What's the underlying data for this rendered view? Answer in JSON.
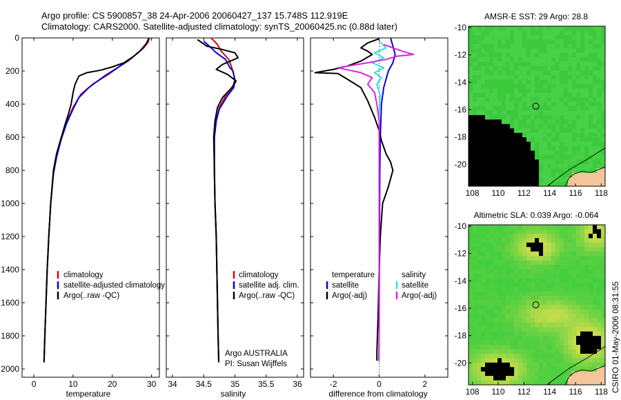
{
  "header": {
    "title_line1": "Argo profile: CS 5900857_38 24-Apr-2006 20060427_137 15.748S 112.919E",
    "title_line2": "Climatology: CARS2000. Satellite-adjusted climatology: synTS_20060425.nc (0.88d later)"
  },
  "side_label": "CSIRO 01-May-2006 08:31:55",
  "chart_data": [
    {
      "type": "line",
      "id": "temperature",
      "xlabel": "temperature",
      "ylabel": "",
      "xlim": [
        -3,
        32
      ],
      "ylim": [
        2050,
        0
      ],
      "x_ticks": [
        0,
        10,
        20,
        30
      ],
      "y_ticks": [
        0,
        200,
        400,
        600,
        800,
        1000,
        1200,
        1400,
        1600,
        1800,
        2000
      ],
      "legend": [
        "climatology",
        "satellite-adjusted climatology",
        "Argo(..raw -QC)"
      ],
      "series": [
        {
          "name": "climatology",
          "color": "#e00000",
          "points": [
            [
              29.5,
              0
            ],
            [
              29,
              30
            ],
            [
              28,
              60
            ],
            [
              26,
              100
            ],
            [
              24,
              140
            ],
            [
              22,
              170
            ],
            [
              19,
              220
            ],
            [
              15,
              280
            ],
            [
              12,
              340
            ],
            [
              10,
              420
            ],
            [
              8.5,
              500
            ],
            [
              7,
              600
            ],
            [
              5.8,
              700
            ],
            [
              5,
              800
            ],
            [
              4.3,
              1000
            ],
            [
              3.8,
              1200
            ],
            [
              3.4,
              1400
            ],
            [
              3.1,
              1600
            ],
            [
              2.8,
              1800
            ],
            [
              2.6,
              1950
            ]
          ]
        },
        {
          "name": "satellite-adjusted climatology",
          "color": "#0000e0",
          "points": [
            [
              29.3,
              0
            ],
            [
              28.8,
              30
            ],
            [
              27.5,
              70
            ],
            [
              25,
              120
            ],
            [
              22,
              170
            ],
            [
              18,
              230
            ],
            [
              14,
              300
            ],
            [
              11.5,
              360
            ],
            [
              10,
              430
            ],
            [
              8.3,
              520
            ],
            [
              7,
              610
            ],
            [
              5.8,
              720
            ],
            [
              5,
              820
            ],
            [
              4.3,
              1000
            ],
            [
              3.8,
              1200
            ],
            [
              3.4,
              1400
            ],
            [
              3.1,
              1600
            ],
            [
              2.8,
              1800
            ],
            [
              2.6,
              1960
            ]
          ]
        },
        {
          "name": "Argo(..raw -QC)",
          "color": "#000000",
          "points": [
            [
              29.2,
              10
            ],
            [
              28.5,
              40
            ],
            [
              27,
              80
            ],
            [
              25.5,
              110
            ],
            [
              23,
              150
            ],
            [
              20,
              175
            ],
            [
              17,
              195
            ],
            [
              13.5,
              210
            ],
            [
              11.5,
              230
            ],
            [
              10.5,
              280
            ],
            [
              10,
              330
            ],
            [
              9.5,
              400
            ],
            [
              8.8,
              460
            ],
            [
              8,
              520
            ],
            [
              7,
              600
            ],
            [
              5.8,
              700
            ],
            [
              5,
              800
            ],
            [
              4.3,
              1000
            ],
            [
              3.8,
              1200
            ],
            [
              3.4,
              1400
            ],
            [
              3.1,
              1600
            ],
            [
              2.8,
              1800
            ],
            [
              2.6,
              1960
            ]
          ]
        }
      ]
    },
    {
      "type": "line",
      "id": "salinity",
      "xlabel": "salinity",
      "xlim": [
        33.9,
        36.1
      ],
      "ylim": [
        2050,
        0
      ],
      "x_ticks": [
        34,
        34.5,
        35,
        35.5,
        36
      ],
      "legend": [
        "climatology",
        "satellite adj. clim.",
        "Argo(..raw -QC)"
      ],
      "annotation": [
        "Argo AUSTRALIA",
        "PI: Susan Wijffels"
      ],
      "series": [
        {
          "name": "climatology",
          "color": "#e00000",
          "points": [
            [
              34.62,
              0
            ],
            [
              34.72,
              40
            ],
            [
              34.78,
              80
            ],
            [
              34.9,
              130
            ],
            [
              34.95,
              180
            ],
            [
              35.0,
              250
            ],
            [
              34.97,
              290
            ],
            [
              34.85,
              350
            ],
            [
              34.75,
              420
            ],
            [
              34.7,
              500
            ],
            [
              34.67,
              600
            ],
            [
              34.67,
              800
            ],
            [
              34.68,
              1000
            ],
            [
              34.7,
              1200
            ],
            [
              34.71,
              1400
            ],
            [
              34.72,
              1600
            ],
            [
              34.73,
              1800
            ],
            [
              34.74,
              1950
            ]
          ]
        },
        {
          "name": "satellite adj. clim.",
          "color": "#0000e0",
          "points": [
            [
              34.5,
              20
            ],
            [
              34.62,
              60
            ],
            [
              34.7,
              90
            ],
            [
              34.85,
              130
            ],
            [
              34.92,
              180
            ],
            [
              34.97,
              200
            ],
            [
              35.0,
              260
            ],
            [
              34.98,
              300
            ],
            [
              34.88,
              350
            ],
            [
              34.75,
              430
            ],
            [
              34.7,
              500
            ],
            [
              34.67,
              600
            ],
            [
              34.67,
              800
            ],
            [
              34.68,
              1000
            ],
            [
              34.7,
              1200
            ],
            [
              34.71,
              1400
            ],
            [
              34.72,
              1600
            ],
            [
              34.73,
              1800
            ],
            [
              34.74,
              1960
            ]
          ]
        },
        {
          "name": "Argo(..raw -QC)",
          "color": "#000000",
          "points": [
            [
              34.4,
              10
            ],
            [
              34.55,
              50
            ],
            [
              34.8,
              70
            ],
            [
              35.0,
              90
            ],
            [
              35.05,
              120
            ],
            [
              34.8,
              160
            ],
            [
              34.7,
              190
            ],
            [
              34.88,
              220
            ],
            [
              35.02,
              260
            ],
            [
              34.95,
              300
            ],
            [
              34.8,
              360
            ],
            [
              34.72,
              420
            ],
            [
              34.68,
              500
            ],
            [
              34.66,
              600
            ],
            [
              34.67,
              800
            ],
            [
              34.68,
              1000
            ],
            [
              34.7,
              1200
            ],
            [
              34.71,
              1400
            ],
            [
              34.72,
              1600
            ],
            [
              34.73,
              1800
            ],
            [
              34.74,
              1960
            ]
          ]
        }
      ]
    },
    {
      "type": "line",
      "id": "difference",
      "xlabel": "difference from climatology",
      "xlim": [
        -3,
        3
      ],
      "ylim": [
        2050,
        0
      ],
      "x_ticks": [
        -2,
        0,
        2
      ],
      "legend_temperature": {
        "heading": "temperature",
        "items": [
          "satellite",
          "Argo(-adj)"
        ]
      },
      "legend_salinity": {
        "heading": "salinity",
        "items": [
          "satellite",
          "Argo(-adj)"
        ]
      },
      "series": [
        {
          "name": "temperature satellite",
          "color": "#0000e0",
          "points": [
            [
              0.5,
              0
            ],
            [
              0.6,
              50
            ],
            [
              0.7,
              100
            ],
            [
              0.6,
              150
            ],
            [
              0.4,
              200
            ],
            [
              0.2,
              300
            ],
            [
              0.1,
              400
            ],
            [
              0.05,
              600
            ],
            [
              0.03,
              800
            ],
            [
              0.02,
              1000
            ],
            [
              0.01,
              1400
            ],
            [
              0,
              1800
            ],
            [
              0,
              1960
            ]
          ]
        },
        {
          "name": "temperature Argo(-adj)",
          "color": "#000000",
          "points": [
            [
              0,
              5
            ],
            [
              -0.5,
              30
            ],
            [
              -0.8,
              60
            ],
            [
              -0.5,
              80
            ],
            [
              -0.3,
              100
            ],
            [
              -0.8,
              140
            ],
            [
              -1.4,
              170
            ],
            [
              -2,
              190
            ],
            [
              -2.8,
              210
            ],
            [
              -1.8,
              215
            ],
            [
              -1.5,
              240
            ],
            [
              -0.8,
              300
            ],
            [
              -0.5,
              380
            ],
            [
              -0.2,
              480
            ],
            [
              0,
              560
            ],
            [
              0.1,
              620
            ],
            [
              0.3,
              700
            ],
            [
              0.5,
              750
            ],
            [
              0.6,
              800
            ],
            [
              0.4,
              900
            ],
            [
              0.15,
              1000
            ],
            [
              0.05,
              1200
            ],
            [
              0,
              1400
            ],
            [
              -0.05,
              1700
            ],
            [
              -0.1,
              1900
            ],
            [
              -0.1,
              1950
            ]
          ]
        },
        {
          "name": "salinity satellite",
          "color": "#30e0e0",
          "points": [
            [
              0,
              20
            ],
            [
              0.3,
              60
            ],
            [
              -0.2,
              90
            ],
            [
              0.2,
              120
            ],
            [
              -0.3,
              150
            ],
            [
              0.2,
              180
            ],
            [
              -0.2,
              210
            ],
            [
              0.1,
              240
            ],
            [
              -0.1,
              280
            ],
            [
              0.05,
              350
            ],
            [
              0,
              450
            ],
            [
              0,
              600
            ],
            [
              0,
              800
            ],
            [
              0,
              1000
            ],
            [
              0,
              1400
            ],
            [
              0,
              1800
            ],
            [
              0,
              1960
            ]
          ]
        },
        {
          "name": "salinity Argo(-adj)",
          "color": "#e020e0",
          "points": [
            [
              0.2,
              40
            ],
            [
              1.0,
              80
            ],
            [
              1.5,
              100
            ],
            [
              0.8,
              110
            ],
            [
              0.3,
              130
            ],
            [
              -0.5,
              150
            ],
            [
              -1.8,
              180
            ],
            [
              -0.8,
              210
            ],
            [
              -0.3,
              240
            ],
            [
              -0.5,
              280
            ],
            [
              -0.2,
              330
            ],
            [
              -0.1,
              400
            ],
            [
              0,
              500
            ],
            [
              0,
              700
            ],
            [
              0,
              900
            ],
            [
              0,
              1200
            ],
            [
              0,
              1500
            ],
            [
              0,
              1800
            ],
            [
              -0.02,
              1950
            ]
          ]
        }
      ]
    },
    {
      "type": "heatmap",
      "id": "sst_map",
      "title": "AMSR-E SST: 29 Argo: 28.8",
      "xlim": [
        107.7,
        118.3
      ],
      "ylim": [
        -21.6,
        -9.9
      ],
      "x_ticks": [
        108,
        110,
        112,
        114,
        116,
        118
      ],
      "y_ticks": [
        -10,
        -12,
        -14,
        -16,
        -18,
        -20
      ],
      "marker": {
        "lon": 112.919,
        "lat": -15.748
      },
      "colors": {
        "base": "#3fce3f",
        "cool": "#32b8e8",
        "deep": "#1e64e0",
        "land": "#f4c49a"
      }
    },
    {
      "type": "heatmap",
      "id": "sla_map",
      "title": "Altimetric SLA: 0.039 Argo: -0.064",
      "xlim": [
        107.7,
        118.3
      ],
      "ylim": [
        -21.6,
        -9.9
      ],
      "x_ticks": [
        108,
        110,
        112,
        114,
        116,
        118
      ],
      "y_ticks": [
        -10,
        -12,
        -14,
        -16,
        -18,
        -20
      ],
      "marker": {
        "lon": 112.919,
        "lat": -15.748
      },
      "colors": {
        "base": "#3fce3f",
        "warm": "#f0e050",
        "warmer": "#f5c84a",
        "land": "#f4c49a"
      }
    }
  ]
}
